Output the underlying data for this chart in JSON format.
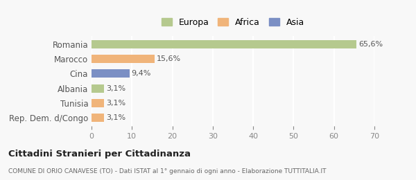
{
  "categories": [
    "Romania",
    "Marocco",
    "Cina",
    "Albania",
    "Tunisia",
    "Rep. Dem. d/Congo"
  ],
  "values": [
    65.6,
    15.6,
    9.4,
    3.1,
    3.1,
    3.1
  ],
  "labels": [
    "65,6%",
    "15,6%",
    "9,4%",
    "3,1%",
    "3,1%",
    "3,1%"
  ],
  "bar_colors": [
    "#b5c98e",
    "#f0b47a",
    "#7b8fc4",
    "#b5c98e",
    "#f0b47a",
    "#f0b47a"
  ],
  "legend_items": [
    {
      "label": "Europa",
      "color": "#b5c98e"
    },
    {
      "label": "Africa",
      "color": "#f0b47a"
    },
    {
      "label": "Asia",
      "color": "#7b8fc4"
    }
  ],
  "xlim": [
    0,
    70
  ],
  "xticks": [
    0,
    10,
    20,
    30,
    40,
    50,
    60,
    70
  ],
  "title": "Cittadini Stranieri per Cittadinanza",
  "subtitle": "COMUNE DI ORIO CANAVESE (TO) - Dati ISTAT al 1° gennaio di ogni anno - Elaborazione TUTTITALIA.IT",
  "background_color": "#f8f8f8",
  "grid_color": "#ffffff",
  "bar_height": 0.55
}
